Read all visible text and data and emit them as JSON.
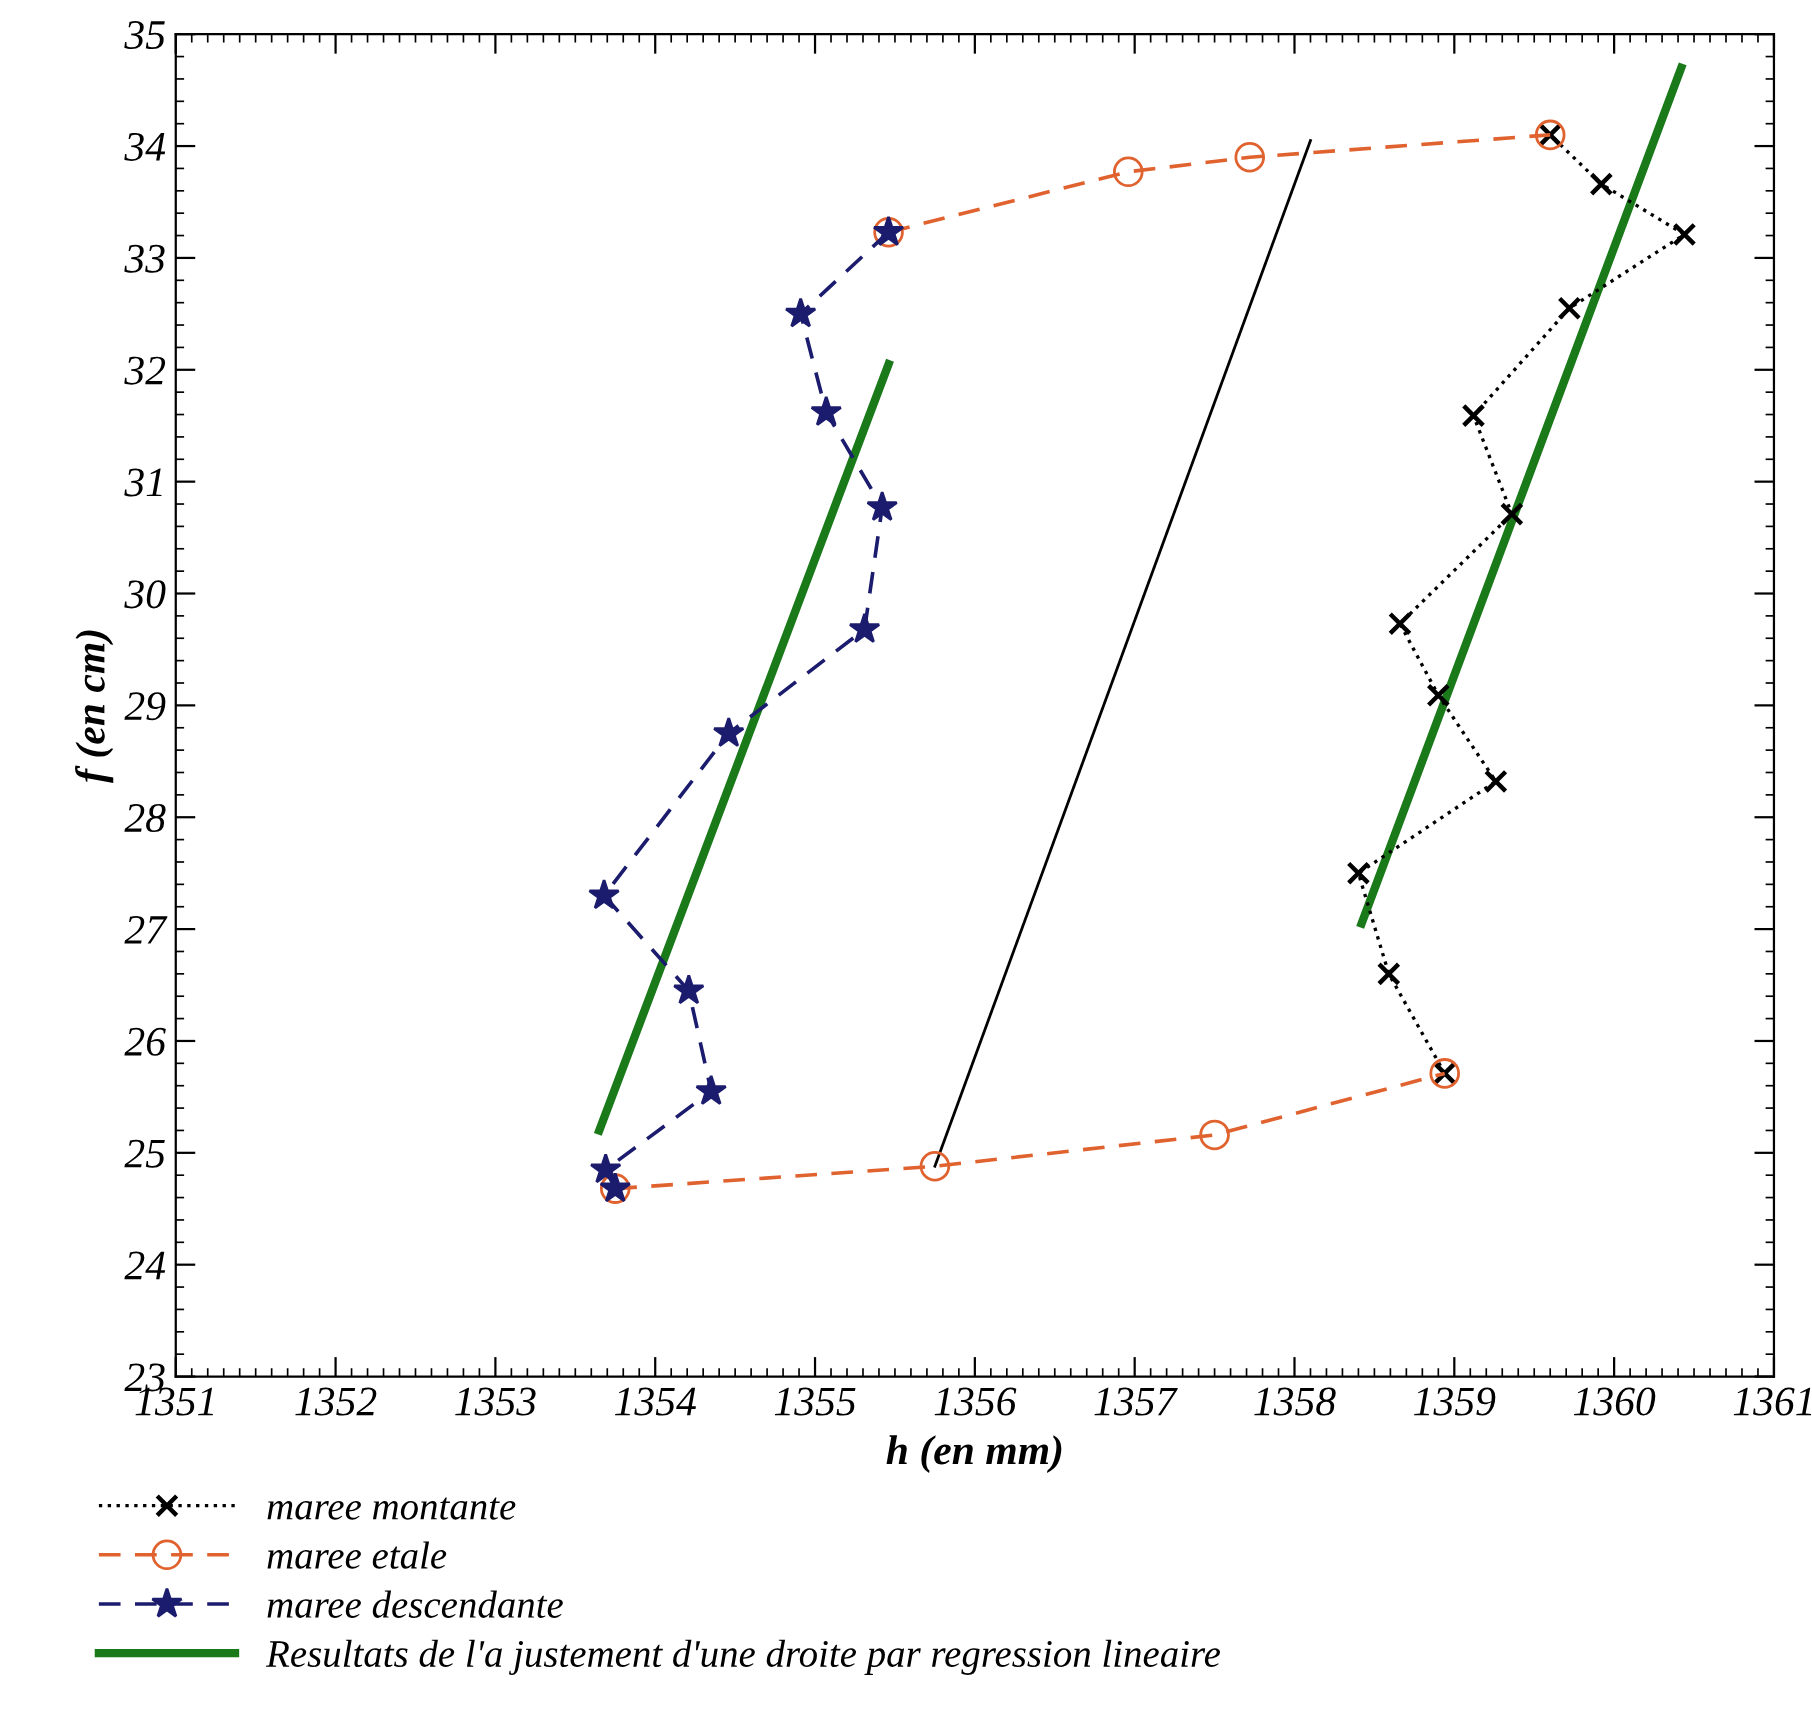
{
  "chart_data": {
    "type": "line",
    "xlabel": "h (en mm)",
    "ylabel": "f (en cm)",
    "xlim": [
      1351,
      1361
    ],
    "ylim": [
      23,
      35
    ],
    "xticks": [
      1351,
      1352,
      1353,
      1354,
      1355,
      1356,
      1357,
      1358,
      1359,
      1360,
      1361
    ],
    "yticks": [
      23,
      24,
      25,
      26,
      27,
      28,
      29,
      30,
      31,
      32,
      33,
      34,
      35
    ],
    "grid": false,
    "legend": "bottom",
    "series": [
      {
        "name": "maree montante",
        "color": "#000000",
        "marker": "cross",
        "line_style": "dotted",
        "x": [
          1358.94,
          1358.59,
          1358.4,
          1359.26,
          1358.9,
          1358.66,
          1359.36,
          1359.12,
          1359.72,
          1360.44,
          1359.92,
          1359.6
        ],
        "values": [
          25.71,
          26.6,
          27.5,
          28.32,
          29.09,
          29.73,
          30.71,
          31.59,
          32.55,
          33.21,
          33.66,
          34.1
        ]
      },
      {
        "name": "maree etale",
        "color": "#e0622f",
        "marker": "circle",
        "line_style": "dashed",
        "x": [
          1353.75,
          1355.75,
          1357.5,
          1358.94,
          null,
          1355.46,
          1356.96,
          1357.72,
          1359.6
        ],
        "values": [
          24.68,
          24.88,
          25.16,
          25.71,
          null,
          33.23,
          33.77,
          33.9,
          34.1
        ]
      },
      {
        "name": "maree descendante",
        "color": "#1c1c6e",
        "marker": "star",
        "line_style": "dashed",
        "x": [
          1355.46,
          1354.91,
          1355.07,
          1355.42,
          1355.31,
          1354.46,
          1353.68,
          1354.21,
          1354.35,
          1353.69,
          1353.75
        ],
        "values": [
          33.23,
          32.5,
          31.62,
          30.77,
          29.68,
          28.75,
          27.3,
          26.45,
          25.55,
          24.85,
          24.68
        ]
      },
      {
        "name": "Resultats de l'a justement d'une droite par regression lineaire",
        "color": "#1a7a1a",
        "marker": "none",
        "line_style": "solid",
        "x": [
          1353.65,
          1355.46,
          null,
          1358.42,
          1360.42
        ],
        "values": [
          25.2,
          32.05,
          null,
          27.05,
          34.7
        ]
      },
      {
        "color": "#000000",
        "marker": "none",
        "line_style": "solid",
        "x": [
          1355.75,
          1358.1
        ],
        "values": [
          24.88,
          34.05
        ]
      }
    ]
  }
}
